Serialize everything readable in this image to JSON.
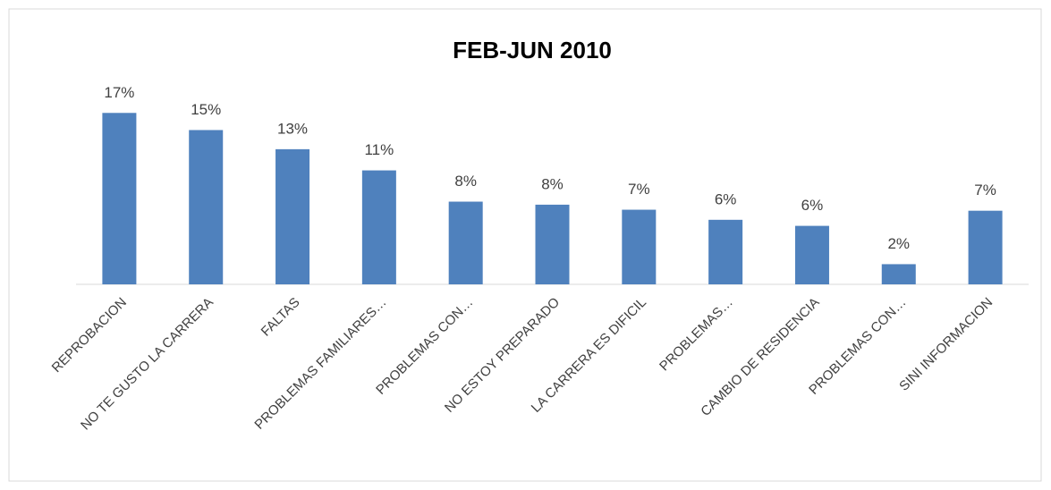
{
  "chart_data": {
    "type": "bar",
    "title": "FEB-JUN 2010",
    "categories": [
      "REPROBACION",
      "NO TE GUSTO LA CARRERA",
      "FALTAS",
      "PROBLEMAS FAMILIARES…",
      "PROBLEMAS CON…",
      "NO ESTOY PREPARADO",
      "LA CARRERA ES DIFICIL",
      "PROBLEMAS…",
      "CAMBIO DE RESIDENCIA",
      "PROBLEMAS CON…",
      "SINI INFORMACION"
    ],
    "values": [
      17,
      15.3,
      13.4,
      11.3,
      8.2,
      7.9,
      7.4,
      6.4,
      5.8,
      2.0,
      7.3
    ],
    "value_labels": [
      "17%",
      "15%",
      "13%",
      "11%",
      "8%",
      "8%",
      "7%",
      "6%",
      "6%",
      "2%",
      "7%"
    ],
    "color": "#4f81bd",
    "ylim": [
      0,
      18
    ]
  }
}
